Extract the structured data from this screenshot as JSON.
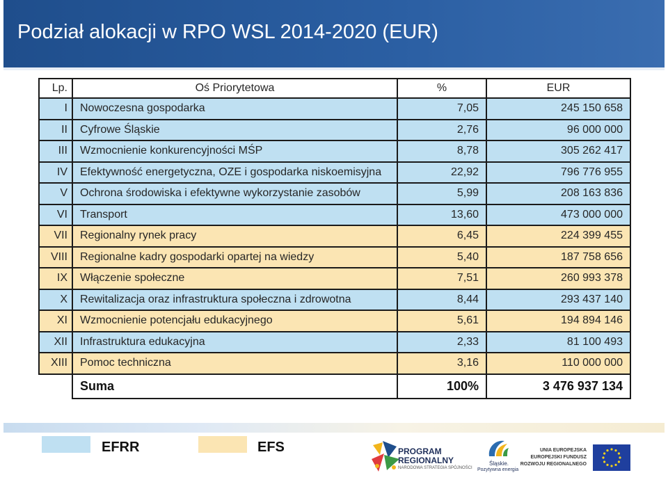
{
  "header": {
    "title": "Podział alokacji w RPO WSL 2014-2020 (EUR)"
  },
  "table": {
    "columns": {
      "lp": "Lp.",
      "name": "Oś Priorytetowa",
      "pct": "%",
      "eur": "EUR"
    },
    "rows": [
      {
        "lp": "I",
        "name": "Nowoczesna gospodarka",
        "pct": "7,05",
        "eur": "245 150 658",
        "fund": "EFRR"
      },
      {
        "lp": "II",
        "name": "Cyfrowe Śląskie",
        "pct": "2,76",
        "eur": "96 000 000",
        "fund": "EFRR"
      },
      {
        "lp": "III",
        "name": "Wzmocnienie konkurencyjności MŚP",
        "pct": "8,78",
        "eur": "305 262 417",
        "fund": "EFRR"
      },
      {
        "lp": "IV",
        "name": "Efektywność energetyczna, OZE i gospodarka niskoemisyjna",
        "pct": "22,92",
        "eur": "796 776 955",
        "fund": "EFRR"
      },
      {
        "lp": "V",
        "name": "Ochrona środowiska i efektywne wykorzystanie zasobów",
        "pct": "5,99",
        "eur": "208 163 836",
        "fund": "EFRR"
      },
      {
        "lp": "VI",
        "name": "Transport",
        "pct": "13,60",
        "eur": "473 000 000",
        "fund": "EFRR"
      },
      {
        "lp": "VII",
        "name": "Regionalny rynek pracy",
        "pct": "6,45",
        "eur": "224 399 455",
        "fund": "EFS"
      },
      {
        "lp": "VIII",
        "name": "Regionalne kadry gospodarki opartej na wiedzy",
        "pct": "5,40",
        "eur": "187 758 656",
        "fund": "EFS"
      },
      {
        "lp": "IX",
        "name": "Włączenie społeczne",
        "pct": "7,51",
        "eur": "260 993 378",
        "fund": "EFS"
      },
      {
        "lp": "X",
        "name": "Rewitalizacja oraz infrastruktura społeczna i zdrowotna",
        "pct": "8,44",
        "eur": "293 437 140",
        "fund": "EFRR"
      },
      {
        "lp": "XI",
        "name": "Wzmocnienie potencjału edukacyjnego",
        "pct": "5,61",
        "eur": "194 894 146",
        "fund": "EFS"
      },
      {
        "lp": "XII",
        "name": "Infrastruktura edukacyjna",
        "pct": "2,33",
        "eur": "81 100 493",
        "fund": "EFRR"
      },
      {
        "lp": "XIII",
        "name": "Pomoc techniczna",
        "pct": "3,16",
        "eur": "110 000 000",
        "fund": "EFS"
      }
    ],
    "sum": {
      "label": "Suma",
      "pct": "100%",
      "eur": "3 476 937 134"
    }
  },
  "legend": [
    {
      "label": "EFRR",
      "color": "#bfe0f2"
    },
    {
      "label": "EFS",
      "color": "#fbe5b3"
    }
  ],
  "logos": {
    "program": {
      "line1": "PROGRAM",
      "line2": "REGIONALNY",
      "line3": "NARODOWA STRATEGIA SPÓJNOŚCI"
    },
    "slaskie": {
      "line1": "Śląskie.",
      "line2": "Pozytywna energia"
    },
    "eu": {
      "line1": "UNIA EUROPEJSKA",
      "line2": "EUROPEJSKI FUNDUSZ",
      "line3": "ROZWOJU REGIONALNEGO"
    }
  }
}
